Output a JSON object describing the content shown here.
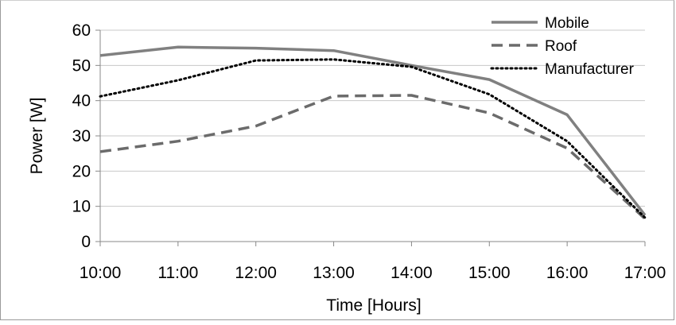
{
  "chart_data": {
    "type": "line",
    "title": "",
    "xlabel": "Time [Hours]",
    "ylabel": "Power [W]",
    "categories": [
      "10:00",
      "11:00",
      "12:00",
      "13:00",
      "14:00",
      "15:00",
      "16:00",
      "17:00"
    ],
    "ylim": [
      0,
      60
    ],
    "yticks": [
      0,
      10,
      20,
      30,
      40,
      50,
      60
    ],
    "grid": "horizontal",
    "legend_position": "top-right",
    "series": [
      {
        "name": "Mobile",
        "values": [
          52.8,
          55.2,
          54.9,
          54.2,
          50.0,
          46.0,
          36.0,
          7.5
        ],
        "color": "#808080",
        "style": "solid"
      },
      {
        "name": "Roof",
        "values": [
          25.5,
          28.5,
          32.8,
          41.3,
          41.5,
          36.5,
          26.5,
          6.5
        ],
        "color": "#6b6b6b",
        "style": "dashed"
      },
      {
        "name": "Manufacturer",
        "values": [
          41.2,
          45.8,
          51.4,
          51.7,
          49.6,
          41.8,
          28.5,
          6.8
        ],
        "color": "#000000",
        "style": "dotted"
      }
    ]
  }
}
